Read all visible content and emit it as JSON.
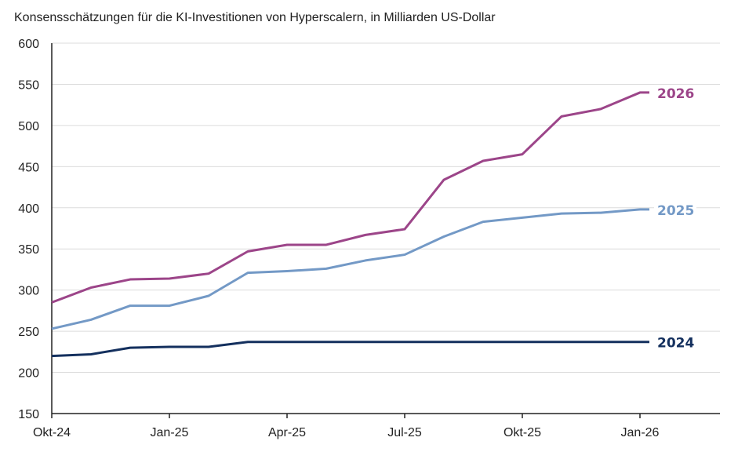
{
  "chart_data": {
    "type": "line",
    "title": "Konsensschätzungen für die KI-Investitionen von Hyperscalern, in Milliarden US-Dollar",
    "xlabel": "",
    "ylabel": "",
    "ylim": [
      150,
      600
    ],
    "yticks": [
      150,
      200,
      250,
      300,
      350,
      400,
      450,
      500,
      550,
      600
    ],
    "x": [
      "Okt-24",
      "Nov-24",
      "Dez-24",
      "Jan-25",
      "Feb-25",
      "Mär-25",
      "Apr-25",
      "Mai-25",
      "Jun-25",
      "Jul-25",
      "Aug-25",
      "Sep-25",
      "Okt-25",
      "Nov-25",
      "Dez-25",
      "Jan-26"
    ],
    "xtick_labels": [
      {
        "index": 0,
        "label": "Okt-24"
      },
      {
        "index": 3,
        "label": "Jan-25"
      },
      {
        "index": 6,
        "label": "Apr-25"
      },
      {
        "index": 9,
        "label": "Jul-25"
      },
      {
        "index": 12,
        "label": "Okt-25"
      },
      {
        "index": 15,
        "label": "Jan-26"
      }
    ],
    "grid": true,
    "series": [
      {
        "name": "2026",
        "color": "#9c4589",
        "values": [
          285,
          303,
          313,
          314,
          320,
          347,
          355,
          355,
          367,
          374,
          434,
          457,
          465,
          511,
          520,
          540
        ]
      },
      {
        "name": "2025",
        "color": "#7399c6",
        "values": [
          253,
          264,
          281,
          281,
          293,
          321,
          323,
          326,
          336,
          343,
          365,
          383,
          388,
          393,
          394,
          398
        ]
      },
      {
        "name": "2024",
        "color": "#14305e",
        "values": [
          220,
          222,
          230,
          231,
          231,
          237,
          237,
          237,
          237,
          237,
          237,
          237,
          237,
          237,
          237,
          237
        ]
      }
    ]
  }
}
